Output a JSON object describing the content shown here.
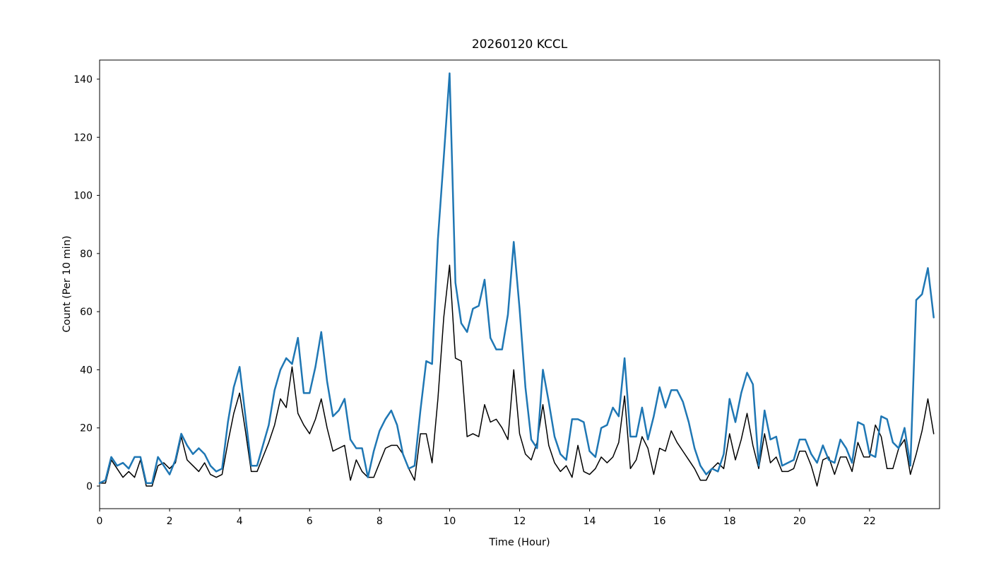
{
  "chart_data": {
    "type": "line",
    "title": "20260120 KCCL",
    "xlabel": "Time (Hour)",
    "ylabel": "Count (Per 10 min)",
    "grid": false,
    "legend": "none",
    "x_start_hour": 0,
    "x_interval_minutes": 10,
    "n_points": 144,
    "xlim": [
      0,
      24
    ],
    "ylim": [
      -7.8,
      146.6
    ],
    "x_ticks": [
      0,
      2,
      4,
      6,
      8,
      10,
      12,
      14,
      16,
      18,
      20,
      22
    ],
    "y_ticks": [
      0,
      20,
      40,
      60,
      80,
      100,
      120,
      140
    ],
    "series": [
      {
        "name": "black",
        "color": "#000000",
        "line_width": 1.5,
        "z": 1,
        "values": [
          1,
          1,
          9,
          6,
          3,
          5,
          3,
          9,
          0,
          0,
          7,
          8,
          6,
          8,
          17,
          9,
          7,
          5,
          8,
          4,
          3,
          4,
          15,
          25,
          32,
          19,
          5,
          5,
          10,
          15,
          21,
          30,
          27,
          41,
          25,
          21,
          18,
          23,
          30,
          20,
          12,
          13,
          14,
          2,
          9,
          5,
          3,
          3,
          8,
          13,
          14,
          14,
          11,
          6,
          2,
          18,
          18,
          8,
          30,
          58,
          76,
          44,
          43,
          17,
          18,
          17,
          28,
          22,
          23,
          20,
          16,
          40,
          18,
          11,
          9,
          15,
          28,
          14,
          8,
          5,
          7,
          3,
          14,
          5,
          4,
          6,
          10,
          8,
          10,
          15,
          31,
          6,
          9,
          17,
          13,
          4,
          13,
          12,
          19,
          15,
          12,
          9,
          6,
          2,
          2,
          6,
          8,
          6,
          18,
          9,
          16,
          25,
          14,
          6,
          18,
          8,
          10,
          5,
          5,
          6,
          12,
          12,
          7,
          0,
          9,
          10,
          4,
          10,
          10,
          5,
          15,
          10,
          10,
          21,
          17,
          6,
          6,
          13,
          16,
          4,
          11,
          19,
          30,
          18
        ]
      },
      {
        "name": "blue",
        "color": "#1f77b4",
        "line_width": 2.5,
        "z": 2,
        "values": [
          1,
          2,
          10,
          7,
          8,
          6,
          10,
          10,
          1,
          1,
          10,
          7,
          4,
          9,
          18,
          14,
          11,
          13,
          11,
          7,
          5,
          6,
          22,
          34,
          41,
          24,
          7,
          7,
          14,
          21,
          33,
          40,
          44,
          42,
          51,
          32,
          32,
          41,
          53,
          36,
          24,
          26,
          30,
          16,
          13,
          13,
          3,
          12,
          19,
          23,
          26,
          21,
          11,
          6,
          7,
          26,
          43,
          42,
          85,
          113,
          142,
          70,
          56,
          53,
          61,
          62,
          71,
          51,
          47,
          47,
          59,
          84,
          61,
          34,
          16,
          13,
          40,
          29,
          17,
          11,
          9,
          23,
          23,
          22,
          12,
          10,
          20,
          21,
          27,
          24,
          44,
          17,
          17,
          27,
          16,
          24,
          34,
          27,
          33,
          33,
          29,
          22,
          13,
          7,
          4,
          6,
          5,
          11,
          30,
          22,
          32,
          39,
          35,
          7,
          26,
          16,
          17,
          7,
          8,
          9,
          16,
          16,
          11,
          8,
          14,
          9,
          8,
          16,
          13,
          8,
          22,
          21,
          11,
          10,
          24,
          23,
          15,
          13,
          20,
          7,
          64,
          66,
          75,
          58
        ]
      }
    ]
  }
}
